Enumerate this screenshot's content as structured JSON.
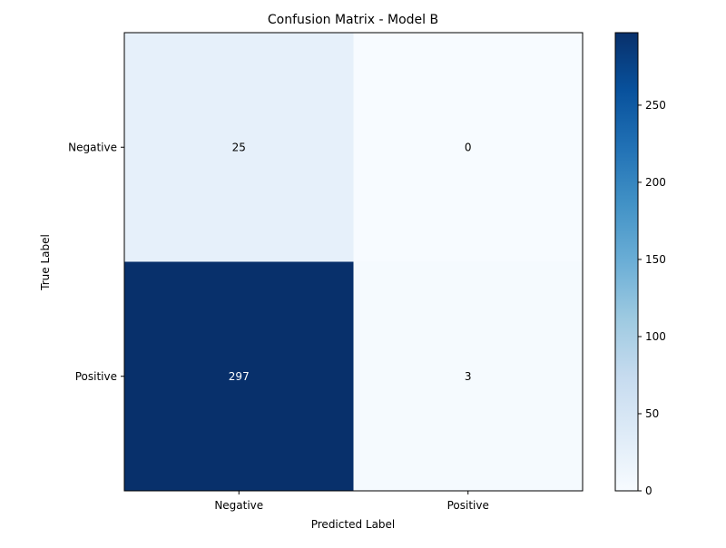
{
  "chart_data": {
    "type": "heatmap",
    "title": "Confusion Matrix - Model B",
    "xlabel": "Predicted Label",
    "ylabel": "True Label",
    "x_categories": [
      "Negative",
      "Positive"
    ],
    "y_categories": [
      "Negative",
      "Positive"
    ],
    "values": [
      [
        25,
        0
      ],
      [
        297,
        3
      ]
    ],
    "colormap": "Blues",
    "colorbar": {
      "range": [
        0,
        297
      ],
      "ticks": [
        0,
        50,
        100,
        150,
        200,
        250
      ]
    },
    "grid": false
  }
}
